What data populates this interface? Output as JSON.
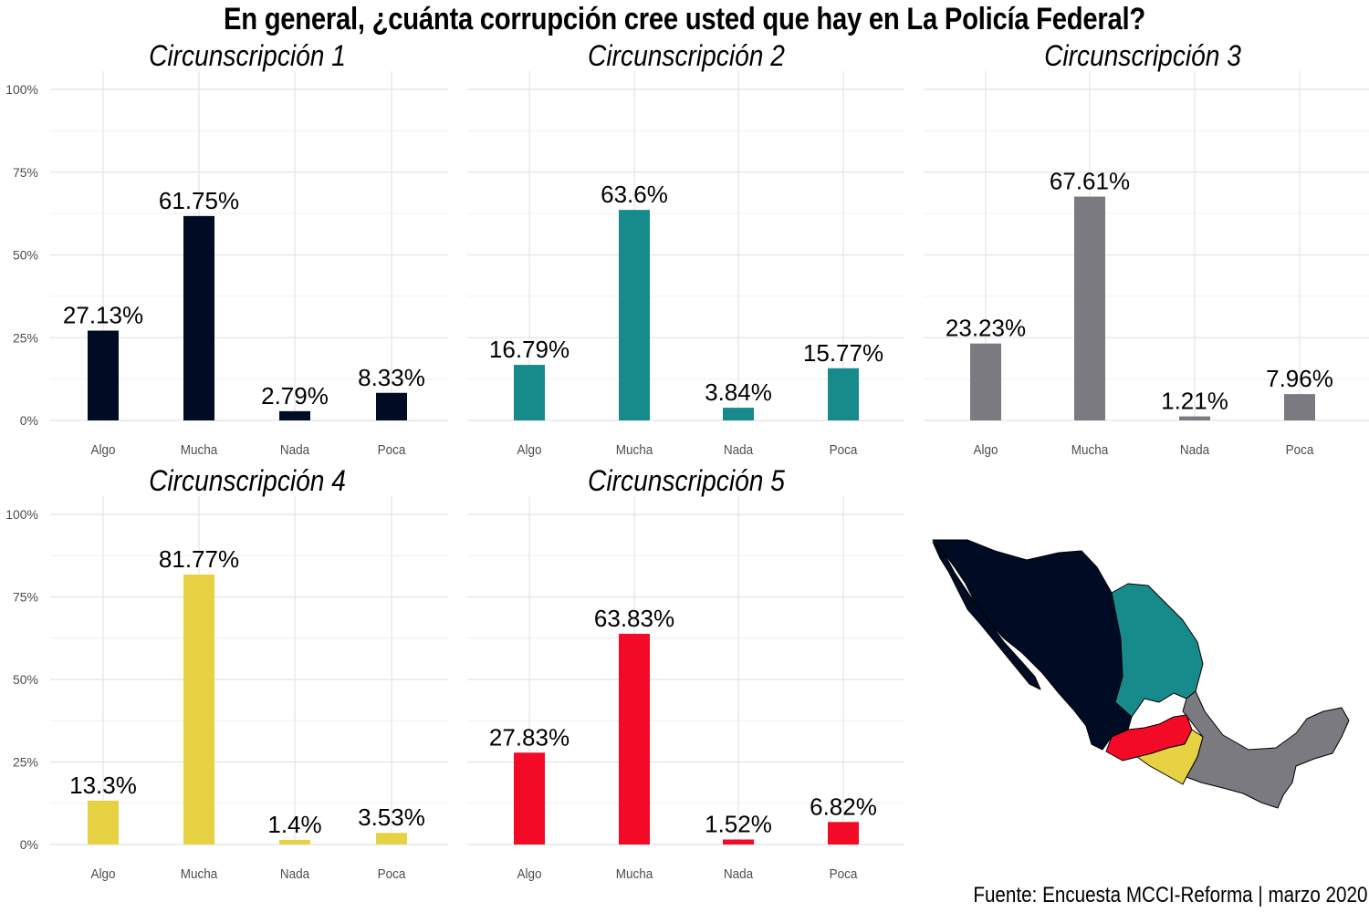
{
  "title": "En general, ¿cuánta corrupción cree usted que hay en La Policía Federal?",
  "source": "Fuente: Encuesta MCCI-Reforma | marzo 2020",
  "chart_data": [
    {
      "type": "bar",
      "title": "Circunscripción 1",
      "categories": [
        "Algo",
        "Mucha",
        "Nada",
        "Poca"
      ],
      "values": [
        27.13,
        61.75,
        2.79,
        8.33
      ],
      "labels": [
        "27.13%",
        "61.75%",
        "2.79%",
        "8.33%"
      ],
      "color": "#000C23",
      "ylim": [
        0,
        100
      ],
      "yticks": [
        "0%",
        "25%",
        "50%",
        "75%",
        "100%"
      ]
    },
    {
      "type": "bar",
      "title": "Circunscripción 2",
      "categories": [
        "Algo",
        "Mucha",
        "Nada",
        "Poca"
      ],
      "values": [
        16.79,
        63.6,
        3.84,
        15.77
      ],
      "labels": [
        "16.79%",
        "63.6%",
        "3.84%",
        "15.77%"
      ],
      "color": "#178B8B",
      "ylim": [
        0,
        100
      ],
      "yticks": [
        "0%",
        "25%",
        "50%",
        "75%",
        "100%"
      ]
    },
    {
      "type": "bar",
      "title": "Circunscripción 3",
      "categories": [
        "Algo",
        "Mucha",
        "Nada",
        "Poca"
      ],
      "values": [
        23.23,
        67.61,
        1.21,
        7.96
      ],
      "labels": [
        "23.23%",
        "67.61%",
        "1.21%",
        "7.96%"
      ],
      "color": "#7A7A80",
      "ylim": [
        0,
        100
      ],
      "yticks": [
        "0%",
        "25%",
        "50%",
        "75%",
        "100%"
      ]
    },
    {
      "type": "bar",
      "title": "Circunscripción 4",
      "categories": [
        "Algo",
        "Mucha",
        "Nada",
        "Poca"
      ],
      "values": [
        13.3,
        81.77,
        1.4,
        3.53
      ],
      "labels": [
        "13.3%",
        "81.77%",
        "1.4%",
        "3.53%"
      ],
      "color": "#E6D143",
      "ylim": [
        0,
        100
      ],
      "yticks": [
        "0%",
        "25%",
        "50%",
        "75%",
        "100%"
      ]
    },
    {
      "type": "bar",
      "title": "Circunscripción 5",
      "categories": [
        "Algo",
        "Mucha",
        "Nada",
        "Poca"
      ],
      "values": [
        27.83,
        63.83,
        1.52,
        6.82
      ],
      "labels": [
        "27.83%",
        "63.83%",
        "1.52%",
        "6.82%"
      ],
      "color": "#F20A27",
      "ylim": [
        0,
        100
      ],
      "yticks": [
        "0%",
        "25%",
        "50%",
        "75%",
        "100%"
      ]
    }
  ],
  "map": {
    "regions": [
      {
        "name": "circunscripcion-1",
        "color": "#000C23"
      },
      {
        "name": "circunscripcion-2",
        "color": "#178B8B"
      },
      {
        "name": "circunscripcion-3",
        "color": "#7A7A80"
      },
      {
        "name": "circunscripcion-4",
        "color": "#E6D143"
      },
      {
        "name": "circunscripcion-5",
        "color": "#F20A27"
      }
    ]
  }
}
